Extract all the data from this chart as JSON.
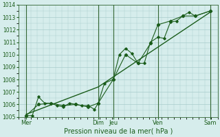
{
  "xlabel": "Pression niveau de la mer( hPa )",
  "bg_color": "#d6edec",
  "grid_color": "#a8cccc",
  "line_color": "#1a5c1a",
  "vline_color": "#336633",
  "ylim": [
    1005,
    1014
  ],
  "yticks": [
    1005,
    1006,
    1007,
    1008,
    1009,
    1010,
    1011,
    1012,
    1013,
    1014
  ],
  "xlim": [
    0,
    8.0
  ],
  "day_labels": [
    "Mer",
    "Dim",
    "Jeu",
    "Ven",
    "Sam"
  ],
  "day_positions": [
    0.3,
    3.2,
    3.8,
    5.6,
    7.7
  ],
  "vline_positions": [
    0.3,
    3.2,
    3.8,
    5.6,
    7.7
  ],
  "line1_x": [
    0.3,
    0.55,
    0.8,
    1.05,
    1.3,
    1.55,
    1.8,
    2.05,
    2.3,
    2.55,
    2.8,
    3.05,
    3.2,
    3.45,
    3.8,
    4.05,
    4.3,
    4.55,
    4.8,
    5.05,
    5.3,
    5.6,
    5.85,
    6.1,
    6.35,
    6.6,
    6.85,
    7.1,
    7.7
  ],
  "line1_y": [
    1005.1,
    1005.1,
    1006.6,
    1006.1,
    1006.1,
    1005.9,
    1005.8,
    1006.1,
    1006.0,
    1005.9,
    1005.9,
    1005.6,
    1006.1,
    1007.7,
    1008.0,
    1010.0,
    1010.5,
    1010.1,
    1009.3,
    1009.3,
    1011.0,
    1011.4,
    1011.3,
    1012.6,
    1012.7,
    1013.1,
    1013.4,
    1013.1,
    1013.5
  ],
  "line2_x": [
    0.3,
    0.8,
    1.3,
    1.8,
    2.3,
    2.8,
    3.2,
    3.8,
    4.3,
    4.8,
    5.3,
    5.6,
    6.1,
    6.6,
    7.1,
    7.7
  ],
  "line2_y": [
    1005.1,
    1006.0,
    1006.1,
    1005.9,
    1006.0,
    1005.8,
    1006.1,
    1008.0,
    1010.0,
    1009.3,
    1010.9,
    1012.4,
    1012.7,
    1013.1,
    1013.1,
    1013.5
  ],
  "line3_x": [
    0.3,
    3.2,
    7.7
  ],
  "line3_y": [
    1005.2,
    1007.4,
    1013.4
  ]
}
